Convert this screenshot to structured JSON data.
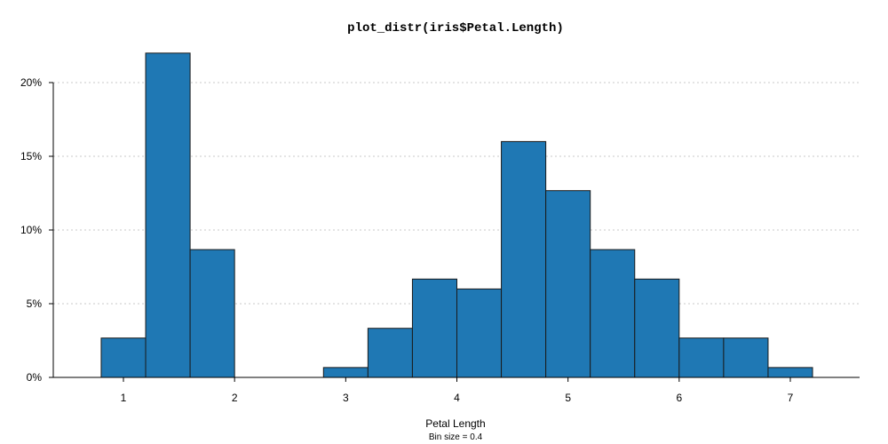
{
  "chart_data": {
    "type": "bar",
    "title": "plot_distr(iris$Petal.Length)",
    "xlabel": "Petal Length",
    "subtitle": "Bin size = 0.4",
    "ylabel": "",
    "bin_size": 0.4,
    "xlim": [
      0.2,
      7.5
    ],
    "ylim": [
      0,
      0.22
    ],
    "x_ticks": [
      1,
      2,
      3,
      4,
      5,
      6,
      7
    ],
    "x_tick_labels": [
      "1",
      "2",
      "3",
      "4",
      "5",
      "6",
      "7"
    ],
    "y_ticks": [
      0,
      0.05,
      0.1,
      0.15,
      0.2
    ],
    "y_tick_labels": [
      "0%",
      "5%",
      "10%",
      "15%",
      "20%"
    ],
    "grid": "horizontal dotted",
    "bar_color": "#1f78b4",
    "bins": [
      {
        "x0": 0.8,
        "x1": 1.2,
        "value": 0.0267
      },
      {
        "x0": 1.2,
        "x1": 1.6,
        "value": 0.22
      },
      {
        "x0": 1.6,
        "x1": 2.0,
        "value": 0.0867
      },
      {
        "x0": 2.8,
        "x1": 3.2,
        "value": 0.0067
      },
      {
        "x0": 3.2,
        "x1": 3.6,
        "value": 0.0333
      },
      {
        "x0": 3.6,
        "x1": 4.0,
        "value": 0.0667
      },
      {
        "x0": 4.0,
        "x1": 4.4,
        "value": 0.06
      },
      {
        "x0": 4.4,
        "x1": 4.8,
        "value": 0.16
      },
      {
        "x0": 4.8,
        "x1": 5.2,
        "value": 0.1267
      },
      {
        "x0": 5.2,
        "x1": 5.6,
        "value": 0.0867
      },
      {
        "x0": 5.6,
        "x1": 6.0,
        "value": 0.0667
      },
      {
        "x0": 6.0,
        "x1": 6.4,
        "value": 0.0267
      },
      {
        "x0": 6.4,
        "x1": 6.8,
        "value": 0.0267
      },
      {
        "x0": 6.8,
        "x1": 7.2,
        "value": 0.0067
      }
    ]
  }
}
